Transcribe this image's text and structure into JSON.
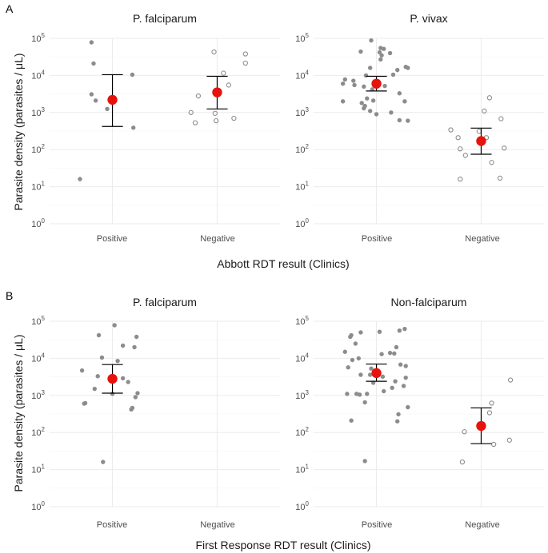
{
  "chart_data": [
    {
      "type": "scatter",
      "panel_label": "A",
      "ylabel": "Parasite density (parasites / μL)",
      "xlabel": "Abbott RDT result (Clinics)",
      "y_scale": "log10",
      "ylim": [
        1,
        100000
      ],
      "y_ticks": [
        {
          "value": 1,
          "base": "10",
          "exp": "0"
        },
        {
          "value": 10,
          "base": "10",
          "exp": "1"
        },
        {
          "value": 100,
          "base": "10",
          "exp": "2"
        },
        {
          "value": 1000,
          "base": "10",
          "exp": "3"
        },
        {
          "value": 10000,
          "base": "10",
          "exp": "4"
        },
        {
          "value": 100000,
          "base": "10",
          "exp": "5"
        }
      ],
      "categories": [
        "Positive",
        "Negative"
      ],
      "facets": [
        {
          "title": "P. falciparum",
          "groups": [
            {
              "category": "Positive",
              "marker": "filled",
              "points": [
                {
                  "jitter": -0.2,
                  "y": 78000
                },
                {
                  "jitter": -0.18,
                  "y": 21000
                },
                {
                  "jitter": -0.2,
                  "y": 3100
                },
                {
                  "jitter": -0.16,
                  "y": 2100
                },
                {
                  "jitter": -0.05,
                  "y": 1250
                },
                {
                  "jitter": 0.19,
                  "y": 10500
                },
                {
                  "jitter": 0.2,
                  "y": 390
                },
                {
                  "jitter": -0.31,
                  "y": 16
                }
              ],
              "mean": 2200,
              "ci_low": 420,
              "ci_high": 10500
            },
            {
              "category": "Negative",
              "marker": "open",
              "points": [
                {
                  "jitter": -0.03,
                  "y": 43000
                },
                {
                  "jitter": 0.27,
                  "y": 38000
                },
                {
                  "jitter": 0.27,
                  "y": 21500
                },
                {
                  "jitter": 0.06,
                  "y": 11500
                },
                {
                  "jitter": 0.11,
                  "y": 5500
                },
                {
                  "jitter": -0.18,
                  "y": 2800
                },
                {
                  "jitter": -0.25,
                  "y": 1000
                },
                {
                  "jitter": -0.02,
                  "y": 950
                },
                {
                  "jitter": 0.16,
                  "y": 700
                },
                {
                  "jitter": -0.21,
                  "y": 530
                },
                {
                  "jitter": -0.01,
                  "y": 600
                }
              ],
              "mean": 3500,
              "ci_low": 1250,
              "ci_high": 9500
            }
          ]
        },
        {
          "title": "P. vivax",
          "groups": [
            {
              "category": "Positive",
              "marker": "filled",
              "points": [
                {
                  "jitter": -0.05,
                  "y": 88000
                },
                {
                  "jitter": 0.04,
                  "y": 55000
                },
                {
                  "jitter": 0.07,
                  "y": 52000
                },
                {
                  "jitter": -0.15,
                  "y": 44000
                },
                {
                  "jitter": 0.03,
                  "y": 42000
                },
                {
                  "jitter": 0.05,
                  "y": 35000
                },
                {
                  "jitter": 0.13,
                  "y": 40000
                },
                {
                  "jitter": 0.04,
                  "y": 27000
                },
                {
                  "jitter": 0.28,
                  "y": 17000
                },
                {
                  "jitter": 0.3,
                  "y": 16000
                },
                {
                  "jitter": -0.06,
                  "y": 16000
                },
                {
                  "jitter": 0.2,
                  "y": 14000
                },
                {
                  "jitter": 0.16,
                  "y": 10500
                },
                {
                  "jitter": -0.1,
                  "y": 10000
                },
                {
                  "jitter": -0.3,
                  "y": 7800
                },
                {
                  "jitter": -0.22,
                  "y": 7200
                },
                {
                  "jitter": -0.32,
                  "y": 6000
                },
                {
                  "jitter": -0.21,
                  "y": 5500
                },
                {
                  "jitter": -0.12,
                  "y": 5000
                },
                {
                  "jitter": 0.08,
                  "y": 5200
                },
                {
                  "jitter": -0.04,
                  "y": 4200
                },
                {
                  "jitter": 0.22,
                  "y": 3300
                },
                {
                  "jitter": 0.27,
                  "y": 2000
                },
                {
                  "jitter": -0.09,
                  "y": 2400
                },
                {
                  "jitter": -0.03,
                  "y": 2100
                },
                {
                  "jitter": -0.32,
                  "y": 2000
                },
                {
                  "jitter": -0.14,
                  "y": 1800
                },
                {
                  "jitter": -0.11,
                  "y": 1500
                },
                {
                  "jitter": -0.12,
                  "y": 1300
                },
                {
                  "jitter": -0.06,
                  "y": 1100
                },
                {
                  "jitter": 0.0,
                  "y": 900
                },
                {
                  "jitter": 0.14,
                  "y": 1000
                },
                {
                  "jitter": 0.22,
                  "y": 620
                },
                {
                  "jitter": 0.3,
                  "y": 600
                }
              ],
              "mean": 6000,
              "ci_low": 3800,
              "ci_high": 9500
            },
            {
              "category": "Negative",
              "marker": "open",
              "points": [
                {
                  "jitter": 0.08,
                  "y": 2500
                },
                {
                  "jitter": 0.03,
                  "y": 1100
                },
                {
                  "jitter": 0.19,
                  "y": 680
                },
                {
                  "jitter": -0.29,
                  "y": 340
                },
                {
                  "jitter": -0.02,
                  "y": 310
                },
                {
                  "jitter": -0.22,
                  "y": 210
                },
                {
                  "jitter": 0.05,
                  "y": 210
                },
                {
                  "jitter": -0.2,
                  "y": 105
                },
                {
                  "jitter": -0.15,
                  "y": 70
                },
                {
                  "jitter": 0.22,
                  "y": 110
                },
                {
                  "jitter": 0.1,
                  "y": 45
                },
                {
                  "jitter": -0.2,
                  "y": 16
                },
                {
                  "jitter": 0.18,
                  "y": 17
                }
              ],
              "mean": 170,
              "ci_low": 75,
              "ci_high": 380
            }
          ]
        }
      ]
    },
    {
      "type": "scatter",
      "panel_label": "B",
      "ylabel": "Parasite density (parasites / μL)",
      "xlabel": "First Response RDT result (Clinics)",
      "y_scale": "log10",
      "ylim": [
        1,
        100000
      ],
      "y_ticks": [
        {
          "value": 1,
          "base": "10",
          "exp": "0"
        },
        {
          "value": 10,
          "base": "10",
          "exp": "1"
        },
        {
          "value": 100,
          "base": "10",
          "exp": "2"
        },
        {
          "value": 1000,
          "base": "10",
          "exp": "3"
        },
        {
          "value": 10000,
          "base": "10",
          "exp": "4"
        },
        {
          "value": 100000,
          "base": "10",
          "exp": "5"
        }
      ],
      "categories": [
        "Positive",
        "Negative"
      ],
      "facets": [
        {
          "title": "P. falciparum",
          "groups": [
            {
              "category": "Positive",
              "marker": "filled",
              "points": [
                {
                  "jitter": 0.02,
                  "y": 78000
                },
                {
                  "jitter": -0.13,
                  "y": 42000
                },
                {
                  "jitter": 0.23,
                  "y": 38000
                },
                {
                  "jitter": 0.1,
                  "y": 22000
                },
                {
                  "jitter": 0.21,
                  "y": 20000
                },
                {
                  "jitter": -0.1,
                  "y": 10500
                },
                {
                  "jitter": 0.05,
                  "y": 8500
                },
                {
                  "jitter": -0.29,
                  "y": 4700
                },
                {
                  "jitter": -0.14,
                  "y": 3300
                },
                {
                  "jitter": 0.1,
                  "y": 2900
                },
                {
                  "jitter": 0.15,
                  "y": 2300
                },
                {
                  "jitter": -0.17,
                  "y": 1500
                },
                {
                  "jitter": 0.24,
                  "y": 1150
                },
                {
                  "jitter": 0.0,
                  "y": 1100
                },
                {
                  "jitter": 0.22,
                  "y": 900
                },
                {
                  "jitter": -0.26,
                  "y": 620
                },
                {
                  "jitter": -0.27,
                  "y": 600
                },
                {
                  "jitter": 0.19,
                  "y": 460
                },
                {
                  "jitter": 0.18,
                  "y": 420
                },
                {
                  "jitter": -0.09,
                  "y": 16
                }
              ],
              "mean": 2800,
              "ci_low": 1150,
              "ci_high": 6800
            }
          ]
        },
        {
          "title": "Non-falciparum",
          "groups": [
            {
              "category": "Positive",
              "marker": "filled",
              "points": [
                {
                  "jitter": 0.27,
                  "y": 62000
                },
                {
                  "jitter": 0.22,
                  "y": 56000
                },
                {
                  "jitter": 0.03,
                  "y": 52000
                },
                {
                  "jitter": -0.15,
                  "y": 50000
                },
                {
                  "jitter": -0.24,
                  "y": 42000
                },
                {
                  "jitter": -0.25,
                  "y": 38000
                },
                {
                  "jitter": -0.2,
                  "y": 25000
                },
                {
                  "jitter": 0.19,
                  "y": 20000
                },
                {
                  "jitter": -0.3,
                  "y": 15000
                },
                {
                  "jitter": 0.13,
                  "y": 14000
                },
                {
                  "jitter": 0.17,
                  "y": 13500
                },
                {
                  "jitter": 0.05,
                  "y": 13000
                },
                {
                  "jitter": -0.17,
                  "y": 10000
                },
                {
                  "jitter": -0.23,
                  "y": 9000
                },
                {
                  "jitter": 0.23,
                  "y": 6800
                },
                {
                  "jitter": 0.28,
                  "y": 6200
                },
                {
                  "jitter": -0.27,
                  "y": 5700
                },
                {
                  "jitter": -0.05,
                  "y": 5300
                },
                {
                  "jitter": -0.06,
                  "y": 3600
                },
                {
                  "jitter": -0.15,
                  "y": 3600
                },
                {
                  "jitter": 0.06,
                  "y": 3200
                },
                {
                  "jitter": 0.28,
                  "y": 3000
                },
                {
                  "jitter": 0.18,
                  "y": 2400
                },
                {
                  "jitter": -0.03,
                  "y": 2200
                },
                {
                  "jitter": 0.26,
                  "y": 1800
                },
                {
                  "jitter": 0.15,
                  "y": 1600
                },
                {
                  "jitter": 0.07,
                  "y": 1300
                },
                {
                  "jitter": -0.09,
                  "y": 1100
                },
                {
                  "jitter": -0.28,
                  "y": 1100
                },
                {
                  "jitter": -0.19,
                  "y": 1100
                },
                {
                  "jitter": -0.16,
                  "y": 1050
                },
                {
                  "jitter": -0.11,
                  "y": 650
                },
                {
                  "jitter": 0.3,
                  "y": 480
                },
                {
                  "jitter": 0.21,
                  "y": 310
                },
                {
                  "jitter": -0.24,
                  "y": 210
                },
                {
                  "jitter": 0.2,
                  "y": 200
                },
                {
                  "jitter": -0.11,
                  "y": 17
                }
              ],
              "mean": 4000,
              "ci_low": 2400,
              "ci_high": 7000
            },
            {
              "category": "Negative",
              "marker": "open",
              "points": [
                {
                  "jitter": 0.28,
                  "y": 2600
                },
                {
                  "jitter": 0.1,
                  "y": 620
                },
                {
                  "jitter": 0.08,
                  "y": 340
                },
                {
                  "jitter": -0.16,
                  "y": 105
                },
                {
                  "jitter": 0.27,
                  "y": 62
                },
                {
                  "jitter": 0.12,
                  "y": 48
                },
                {
                  "jitter": -0.18,
                  "y": 16
                }
              ],
              "mean": 150,
              "ci_low": 50,
              "ci_high": 460
            }
          ]
        }
      ]
    }
  ],
  "colors": {
    "panel_bg": "#ffffff",
    "grid": "#ebebeb",
    "point": "#8c8c8c",
    "mean": "#e8120c",
    "errorbar": "#000000"
  }
}
